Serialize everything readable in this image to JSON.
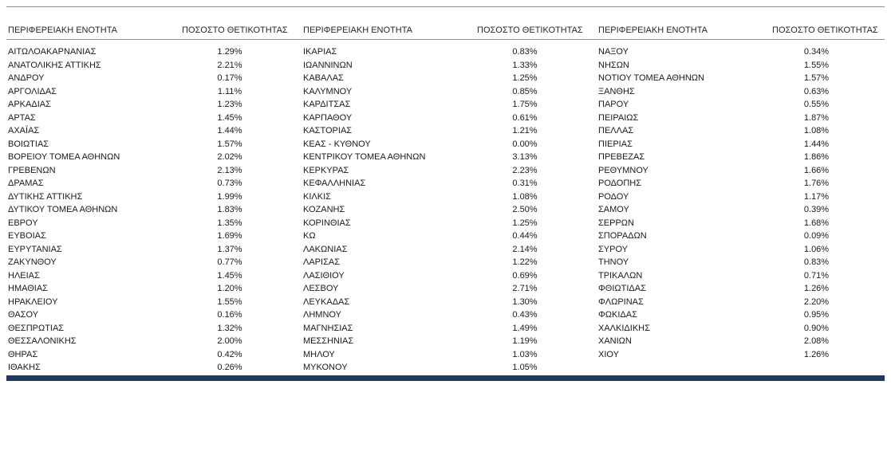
{
  "table": {
    "region_header": "ΠΕΡΙΦΕΡΕΙΑΚΗ ΕΝΟΤΗΤΑ",
    "value_header": "ΠΟΣΟΣΤΟ ΘΕΤΙΚΟΤΗΤΑΣ",
    "rows": [
      [
        "ΑΙΤΩΛΟΑΚΑΡΝΑΝΙΑΣ",
        "1.29%",
        "ΙΚΑΡΙΑΣ",
        "0.83%",
        "ΝΑΞΟΥ",
        "0.34%"
      ],
      [
        "",
        "",
        "",
        "",
        "",
        ""
      ],
      [
        "ΑΝΑΤΟΛΙΚΗΣ ΑΤΤΙΚΗΣ",
        "2.21%",
        "ΙΩΑΝΝΙΝΩΝ",
        "1.33%",
        "ΝΗΣΩΝ",
        "1.55%"
      ],
      [
        "",
        "",
        "",
        "",
        "",
        ""
      ],
      [
        "",
        "",
        "",
        "",
        "",
        ""
      ],
      [
        "ΑΝΔΡΟΥ",
        "0.17%",
        "ΚΑΒΑΛΑΣ",
        "1.25%",
        "ΝΟΤΙΟΥ ΤΟΜΕΑ ΑΘΗΝΩΝ",
        "1.57%"
      ],
      [
        "ΑΡΓΟΛΙΔΑΣ",
        "1.11%",
        "ΚΑΛΥΜΝΟΥ",
        "0.85%",
        "ΞΑΝΘΗΣ",
        "0.63%"
      ],
      [
        "ΑΡΚΑΔΙΑΣ",
        "1.23%",
        "ΚΑΡΔΙΤΣΑΣ",
        "1.75%",
        "ΠΑΡΟΥ",
        "0.55%"
      ],
      [
        "ΑΡΤΑΣ",
        "1.45%",
        "ΚΑΡΠΑΘΟΥ",
        "0.61%",
        "ΠΕΙΡΑΙΩΣ",
        "1.87%"
      ],
      [
        "ΑΧΑΪΑΣ",
        "1.44%",
        "ΚΑΣΤΟΡΙΑΣ",
        "1.21%",
        "ΠΕΛΛΑΣ",
        "1.08%"
      ],
      [
        "ΒΟΙΩΤΙΑΣ",
        "1.57%",
        "ΚΕΑΣ - ΚΥΘΝΟΥ",
        "0.00%",
        "ΠΙΕΡΙΑΣ",
        "1.44%"
      ],
      [
        "",
        "",
        "",
        "",
        "",
        ""
      ],
      [
        "",
        "",
        "",
        "",
        "",
        ""
      ],
      [
        "ΒΟΡΕΙΟΥ ΤΟΜΕΑ ΑΘΗΝΩΝ",
        "2.02%",
        "ΚΕΝΤΡΙΚΟΥ ΤΟΜΕΑ ΑΘΗΝΩΝ",
        "3.13%",
        "ΠΡΕΒΕΖΑΣ",
        "1.86%"
      ],
      [
        "ΓΡΕΒΕΝΩΝ",
        "2.13%",
        "ΚΕΡΚΥΡΑΣ",
        "2.23%",
        "ΡΕΘΥΜΝΟΥ",
        "1.66%"
      ],
      [
        "ΔΡΑΜΑΣ",
        "0.73%",
        "ΚΕΦΑΛΛΗΝΙΑΣ",
        "0.31%",
        "ΡΟΔΟΠΗΣ",
        "1.76%"
      ],
      [
        "",
        "",
        "",
        "",
        "",
        ""
      ],
      [
        "ΔΥΤΙΚΗΣ ΑΤΤΙΚΗΣ",
        "1.99%",
        "ΚΙΛΚΙΣ",
        "1.08%",
        "ΡΟΔΟΥ",
        "1.17%"
      ],
      [
        "",
        "",
        "",
        "",
        "",
        ""
      ],
      [
        "ΔΥΤΙΚΟΥ ΤΟΜΕΑ ΑΘΗΝΩΝ",
        "1.83%",
        "ΚΟΖΑΝΗΣ",
        "2.50%",
        "ΣΑΜΟΥ",
        "0.39%"
      ],
      [
        "ΕΒΡΟΥ",
        "1.35%",
        "ΚΟΡΙΝΘΙΑΣ",
        "1.25%",
        "ΣΕΡΡΩΝ",
        "1.68%"
      ],
      [
        "ΕΥΒΟΙΑΣ",
        "1.69%",
        "ΚΩ",
        "0.44%",
        "ΣΠΟΡΑΔΩΝ",
        "0.09%"
      ],
      [
        "ΕΥΡΥΤΑΝΙΑΣ",
        "1.37%",
        "ΛΑΚΩΝΙΑΣ",
        "2.14%",
        "ΣΥΡΟΥ",
        "1.06%"
      ],
      [
        "ΖΑΚΥΝΘΟΥ",
        "0.77%",
        "ΛΑΡΙΣΑΣ",
        "1.22%",
        "ΤΗΝΟΥ",
        "0.83%"
      ],
      [
        "ΗΛΕΙΑΣ",
        "1.45%",
        "ΛΑΣΙΘΙΟΥ",
        "0.69%",
        "ΤΡΙΚΑΛΩΝ",
        "0.71%"
      ],
      [
        "ΗΜΑΘΙΑΣ",
        "1.20%",
        "ΛΕΣΒΟΥ",
        "2.71%",
        "ΦΘΙΩΤΙΔΑΣ",
        "1.26%"
      ],
      [
        "ΗΡΑΚΛΕΙΟΥ",
        "1.55%",
        "ΛΕΥΚΑΔΑΣ",
        "1.30%",
        "ΦΛΩΡΙΝΑΣ",
        "2.20%"
      ],
      [
        "ΘΑΣΟΥ",
        "0.16%",
        "ΛΗΜΝΟΥ",
        "0.43%",
        "ΦΩΚΙΔΑΣ",
        "0.95%"
      ],
      [
        "ΘΕΣΠΡΩΤΙΑΣ",
        "1.32%",
        "ΜΑΓΝΗΣΙΑΣ",
        "1.49%",
        "ΧΑΛΚΙΔΙΚΗΣ",
        "0.90%"
      ],
      [
        "ΘΕΣΣΑΛΟΝΙΚΗΣ",
        "2.00%",
        "ΜΕΣΣΗΝΙΑΣ",
        "1.19%",
        "ΧΑΝΙΩΝ",
        "2.08%"
      ],
      [
        "ΘΗΡΑΣ",
        "0.42%",
        "ΜΗΛΟΥ",
        "1.03%",
        "ΧΙΟΥ",
        "1.26%"
      ],
      [
        "ΙΘΑΚΗΣ",
        "0.26%",
        "ΜΥΚΟΝΟΥ",
        "1.05%",
        "",
        ""
      ]
    ]
  },
  "colors": {
    "text": "#1a1a1a",
    "thin_rule": "#8c8c8c",
    "bottom_rule": "#1f3864"
  }
}
